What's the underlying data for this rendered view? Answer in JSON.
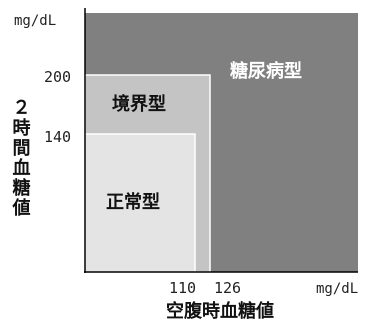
{
  "chart_data": {
    "type": "area",
    "x_axis": {
      "label": "空腹時血糖値",
      "unit": "mg/dL",
      "ticks": [
        110,
        126
      ]
    },
    "y_axis": {
      "label": "２時間血糖値",
      "unit": "mg/dL",
      "ticks": [
        140,
        200
      ]
    },
    "regions": [
      {
        "label": "糖尿病型",
        "fill": "#808080",
        "text_color": "#ffffff",
        "x_min": 126,
        "y_min": 200
      },
      {
        "label": "境界型",
        "fill": "#c4c4c4",
        "text_color": "#111111",
        "x_max": 126,
        "y_max": 200
      },
      {
        "label": "正常型",
        "fill": "#e4e4e4",
        "text_color": "#111111",
        "x_max": 110,
        "y_max": 140
      }
    ],
    "grid": false,
    "legend": "none"
  }
}
